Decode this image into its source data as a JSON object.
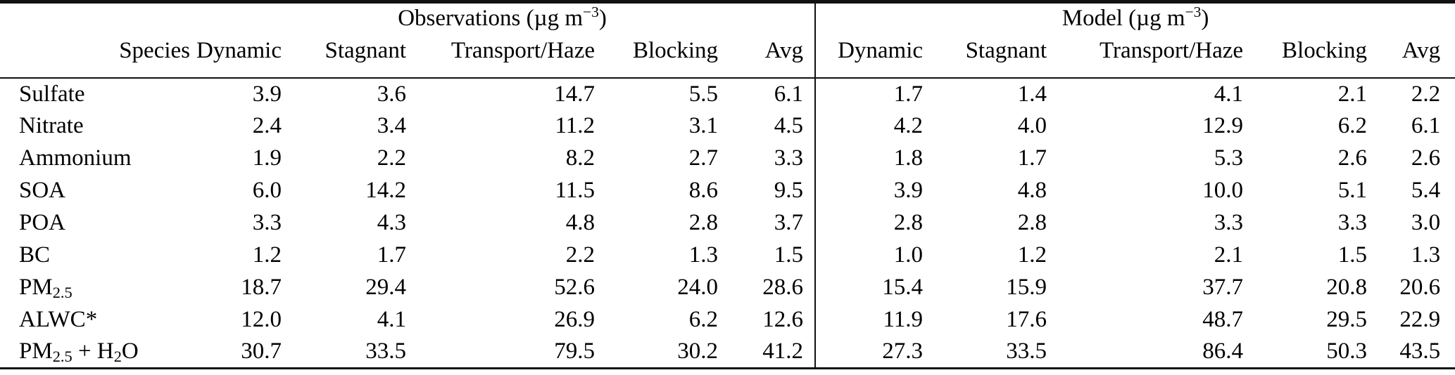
{
  "page": {
    "background_color": "#ffffff",
    "text_color": "#000000",
    "rule_color": "#111111"
  },
  "table": {
    "groups": [
      {
        "pre": "Observations (µg m",
        "sup": "−3",
        "post": ")"
      },
      {
        "pre": "Model (µg m",
        "sup": "−3",
        "post": ")"
      }
    ],
    "columns": [
      "Species",
      "Dynamic",
      "Stagnant",
      "Transport/Haze",
      "Blocking",
      "Avg",
      "Dynamic",
      "Stagnant",
      "Transport/Haze",
      "Blocking",
      "Avg"
    ],
    "rows": [
      {
        "species": [
          {
            "t": "Sulfate"
          }
        ],
        "values": [
          "3.9",
          "3.6",
          "14.7",
          "5.5",
          "6.1",
          "1.7",
          "1.4",
          "4.1",
          "2.1",
          "2.2"
        ]
      },
      {
        "species": [
          {
            "t": "Nitrate"
          }
        ],
        "values": [
          "2.4",
          "3.4",
          "11.2",
          "3.1",
          "4.5",
          "4.2",
          "4.0",
          "12.9",
          "6.2",
          "6.1"
        ]
      },
      {
        "species": [
          {
            "t": "Ammonium"
          }
        ],
        "values": [
          "1.9",
          "2.2",
          "8.2",
          "2.7",
          "3.3",
          "1.8",
          "1.7",
          "5.3",
          "2.6",
          "2.6"
        ]
      },
      {
        "species": [
          {
            "t": "SOA"
          }
        ],
        "values": [
          "6.0",
          "14.2",
          "11.5",
          "8.6",
          "9.5",
          "3.9",
          "4.8",
          "10.0",
          "5.1",
          "5.4"
        ]
      },
      {
        "species": [
          {
            "t": "POA"
          }
        ],
        "values": [
          "3.3",
          "4.3",
          "4.8",
          "2.8",
          "3.7",
          "2.8",
          "2.8",
          "3.3",
          "3.3",
          "3.0"
        ]
      },
      {
        "species": [
          {
            "t": "BC"
          }
        ],
        "values": [
          "1.2",
          "1.7",
          "2.2",
          "1.3",
          "1.5",
          "1.0",
          "1.2",
          "2.1",
          "1.5",
          "1.3"
        ]
      },
      {
        "species": [
          {
            "t": "PM"
          },
          {
            "sub": "2.5"
          }
        ],
        "values": [
          "18.7",
          "29.4",
          "52.6",
          "24.0",
          "28.6",
          "15.4",
          "15.9",
          "37.7",
          "20.8",
          "20.6"
        ]
      },
      {
        "species": [
          {
            "t": "ALWC*"
          }
        ],
        "values": [
          "12.0",
          "4.1",
          "26.9",
          "6.2",
          "12.6",
          "11.9",
          "17.6",
          "48.7",
          "29.5",
          "22.9"
        ]
      },
      {
        "species": [
          {
            "t": "PM"
          },
          {
            "sub": "2.5"
          },
          {
            "t": " + H"
          },
          {
            "sub": "2"
          },
          {
            "t": "O"
          }
        ],
        "values": [
          "30.7",
          "33.5",
          "79.5",
          "30.2",
          "41.2",
          "27.3",
          "33.5",
          "86.4",
          "50.3",
          "43.5"
        ]
      }
    ]
  }
}
